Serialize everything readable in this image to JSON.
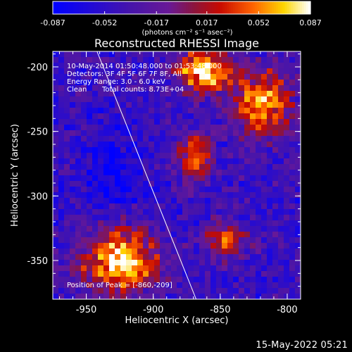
{
  "chart_data": {
    "type": "heatmap",
    "title": "Reconstructed RHESSI Image",
    "xlabel": "Heliocentric X (arcsec)",
    "ylabel": "Heliocentric Y (arcsec)",
    "xlim": [
      -975,
      -790
    ],
    "ylim": [
      -380,
      -188
    ],
    "x_ticks": [
      -950,
      -900,
      -850,
      -800
    ],
    "x_tick_labels": [
      "-950",
      "-900",
      "-850",
      "-800"
    ],
    "y_ticks": [
      -200,
      -250,
      -300,
      -350
    ],
    "y_tick_labels": [
      "-200",
      "-250",
      "-300",
      "-350"
    ],
    "colorbar": {
      "min": -0.087,
      "max": 0.087,
      "ticks": [
        -0.087,
        -0.052,
        -0.017,
        0.017,
        0.052,
        0.087
      ],
      "tick_labels": [
        "-0.087",
        "-0.052",
        "-0.017",
        "0.017",
        "0.052",
        "0.087"
      ],
      "units_label": "(photons cm⁻² s⁻¹ asec⁻²)"
    },
    "annotations": [
      "10-May-2014 01:50:48.000 to 01:53:48.000",
      "Detectors: 3F 4F 5F 6F 7F 8F, All",
      "Energy Range: 3.0 - 6.0 keV",
      "Clean",
      "Total counts: 8.73E+04"
    ],
    "position_label": "Position of Peak = [-860,-209]",
    "limb_line": {
      "x": [
        -942,
        -868
      ],
      "y": [
        -188,
        -380
      ]
    },
    "bright_regions": [
      {
        "name": "top-right-source",
        "x": -862,
        "y": -203,
        "peak": 0.087,
        "sx": 14,
        "sy": 12
      },
      {
        "name": "right-edge-source",
        "x": -818,
        "y": -228,
        "peak": 0.07,
        "sx": 14,
        "sy": 18
      },
      {
        "name": "bottom-left-source",
        "x": -925,
        "y": -350,
        "peak": 0.083,
        "sx": 20,
        "sy": 18
      },
      {
        "name": "mid-left-source",
        "x": -868,
        "y": -270,
        "peak": 0.05,
        "sx": 9,
        "sy": 12
      },
      {
        "name": "lower-middle-source",
        "x": -845,
        "y": -335,
        "peak": 0.04,
        "sx": 10,
        "sy": 10
      }
    ],
    "grid": false
  },
  "footer": {
    "date": "15-May-2022 05:21"
  }
}
